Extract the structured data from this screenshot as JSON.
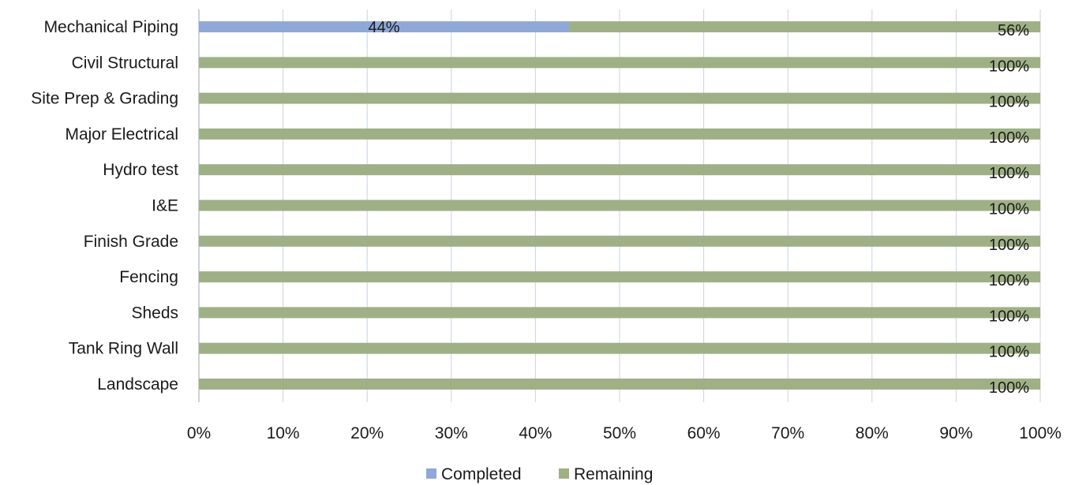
{
  "chart_data": {
    "type": "bar",
    "orientation": "horizontal",
    "stacked": true,
    "categories": [
      "Mechanical Piping",
      "Civil Structural",
      "Site Prep & Grading",
      "Major Electrical",
      "Hydro test",
      "I&E",
      "Finish Grade",
      "Fencing",
      "Sheds",
      "Tank Ring Wall",
      "Landscape"
    ],
    "series": [
      {
        "name": "Completed",
        "color": "#8fa8d8",
        "values": [
          44,
          0,
          0,
          0,
          0,
          0,
          0,
          0,
          0,
          0,
          0
        ],
        "labels": [
          "44%",
          "",
          "",
          "",
          "",
          "",
          "",
          "",
          "",
          "",
          ""
        ]
      },
      {
        "name": "Remaining",
        "color": "#9fb086",
        "values": [
          56,
          100,
          100,
          100,
          100,
          100,
          100,
          100,
          100,
          100,
          100
        ],
        "labels": [
          "56%",
          "100%",
          "100%",
          "100%",
          "100%",
          "100%",
          "100%",
          "100%",
          "100%",
          "100%",
          "100%"
        ]
      }
    ],
    "xlim": [
      0,
      100
    ],
    "x_ticks": [
      "0%",
      "10%",
      "20%",
      "30%",
      "40%",
      "50%",
      "60%",
      "70%",
      "80%",
      "90%",
      "100%"
    ],
    "grid": true,
    "legend_position": "bottom"
  }
}
